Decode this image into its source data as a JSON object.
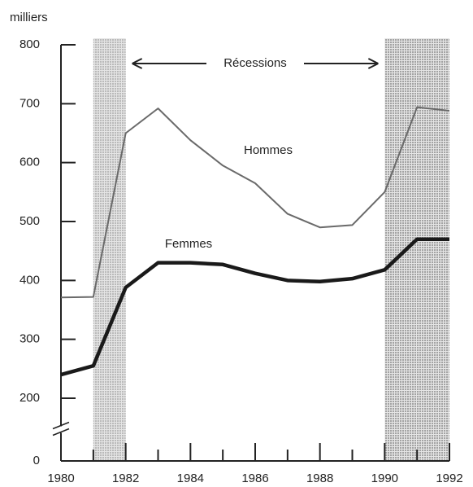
{
  "chart_data": {
    "type": "line",
    "y_unit_label": "milliers",
    "annotation": "Récessions",
    "x": [
      1980,
      1981,
      1982,
      1983,
      1984,
      1985,
      1986,
      1987,
      1988,
      1989,
      1990,
      1991,
      1992
    ],
    "series": [
      {
        "name": "Hommes",
        "color": "#6a6a6a",
        "values": [
          371,
          372,
          650,
          692,
          638,
          595,
          565,
          513,
          490,
          494,
          550,
          694,
          688
        ]
      },
      {
        "name": "Femmes",
        "color": "#1a1a1a",
        "values": [
          240,
          255,
          388,
          430,
          430,
          427,
          412,
          400,
          398,
          403,
          418,
          470,
          470
        ]
      }
    ],
    "recessions": [
      [
        1981,
        1982
      ],
      [
        1990,
        1992
      ]
    ],
    "recession_color": "#b5b5b5",
    "xlim": [
      1980,
      1992
    ],
    "xticks": [
      1980,
      1982,
      1984,
      1986,
      1988,
      1990,
      1992
    ],
    "xminorticks": [
      1981,
      1983,
      1985,
      1987,
      1989,
      1991
    ],
    "ylim": [
      0,
      800
    ],
    "yticks": [
      0,
      200,
      300,
      400,
      500,
      600,
      700,
      800
    ],
    "y_axis_break": true,
    "grid": false
  }
}
